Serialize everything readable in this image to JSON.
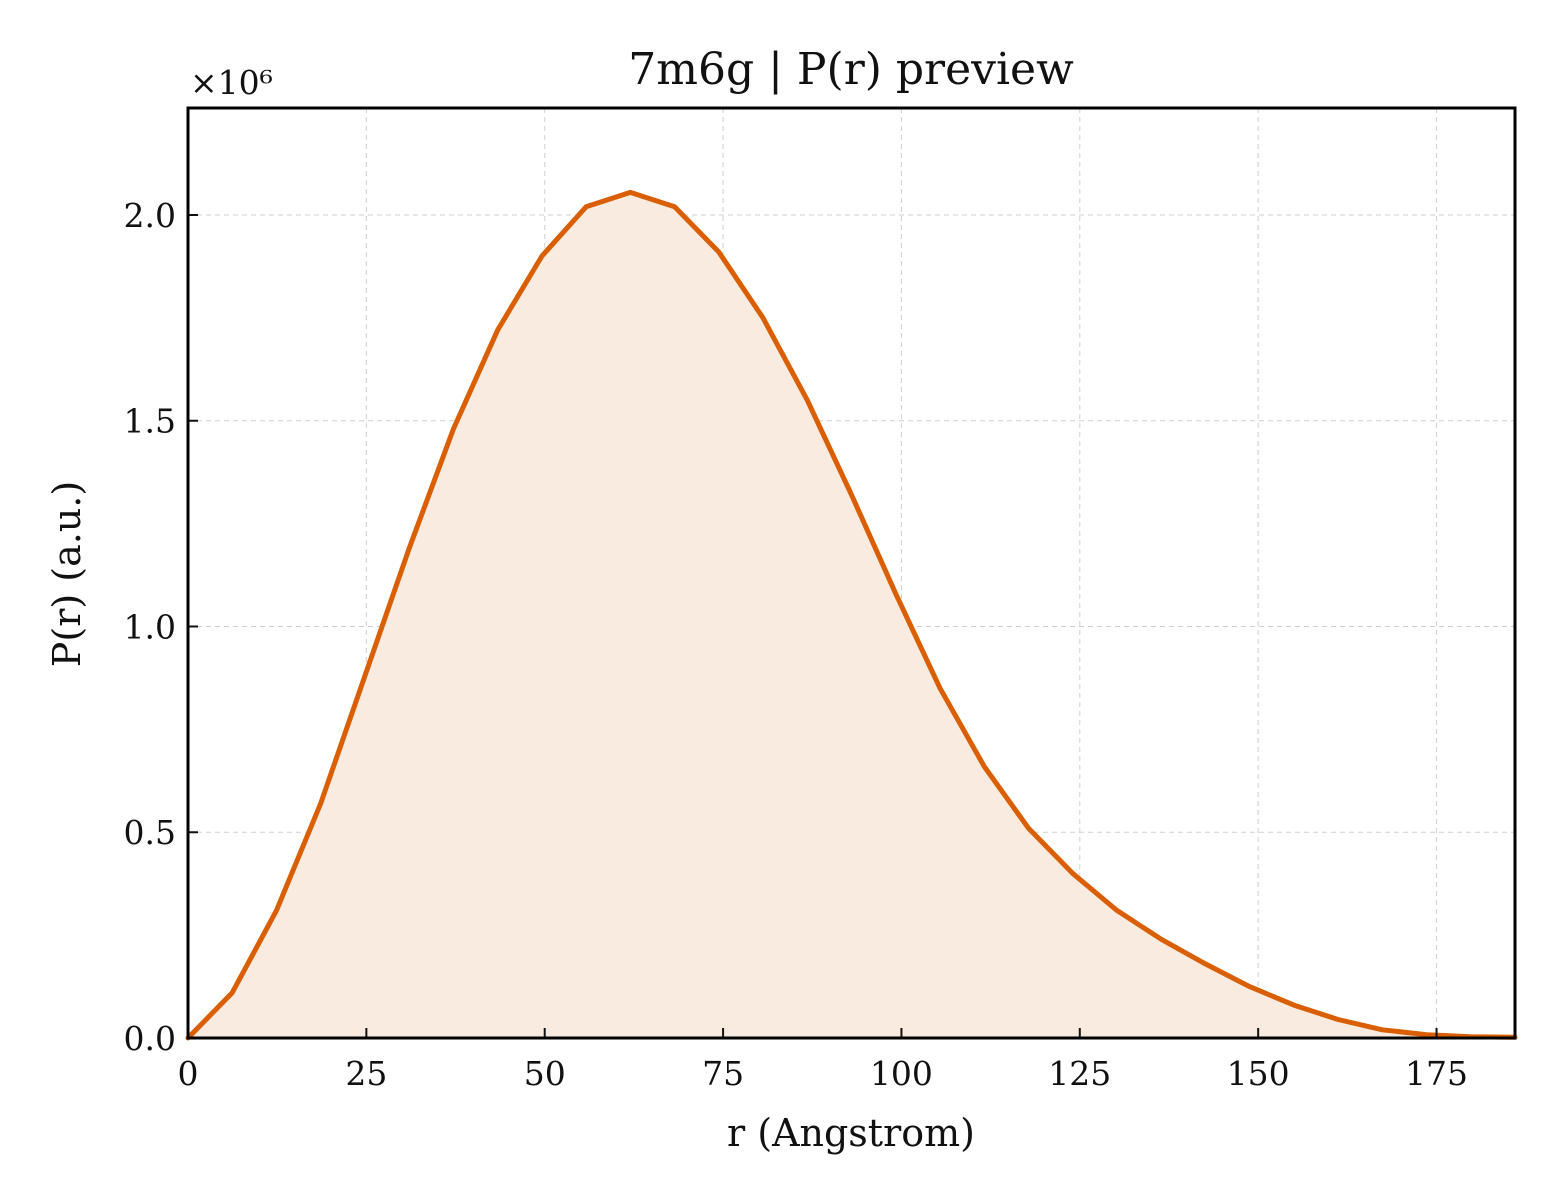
{
  "chart_data": {
    "type": "area",
    "title": "7m6g | P(r) preview",
    "xlabel": "r (Angstrom)",
    "ylabel": "P(r) (a.u.)",
    "y_multiplier_label": "×10⁶",
    "y_scale_factor": 1000000,
    "xlim": [
      0,
      186
    ],
    "ylim": [
      0,
      2.26
    ],
    "x_ticks": [
      0,
      25,
      50,
      75,
      100,
      125,
      150,
      175
    ],
    "x_tick_labels": [
      "0",
      "25",
      "50",
      "75",
      "100",
      "125",
      "150",
      "175"
    ],
    "y_ticks": [
      0,
      0.5,
      1.0,
      1.5,
      2.0
    ],
    "y_tick_labels": [
      "0.0",
      "0.5",
      "1.0",
      "1.5",
      "2.0"
    ],
    "grid": true,
    "line_color": "#d95f02",
    "fill_color": "#f9ebe0",
    "series": [
      {
        "x": [
          0,
          6.2,
          12.4,
          18.6,
          24.8,
          31.0,
          37.2,
          43.4,
          49.6,
          55.8,
          62.0,
          68.2,
          74.4,
          80.6,
          86.8,
          93.0,
          99.2,
          105.4,
          111.6,
          117.8,
          124.0,
          130.2,
          136.4,
          142.6,
          148.8,
          155.0,
          161.2,
          167.4,
          173.6,
          179.8,
          186.0
        ],
        "values": [
          0.0,
          0.11,
          0.31,
          0.57,
          0.88,
          1.19,
          1.48,
          1.72,
          1.9,
          2.02,
          2.055,
          2.02,
          1.91,
          1.75,
          1.55,
          1.32,
          1.08,
          0.85,
          0.66,
          0.51,
          0.4,
          0.31,
          0.24,
          0.18,
          0.125,
          0.08,
          0.045,
          0.02,
          0.008,
          0.003,
          0.002
        ]
      }
    ]
  }
}
